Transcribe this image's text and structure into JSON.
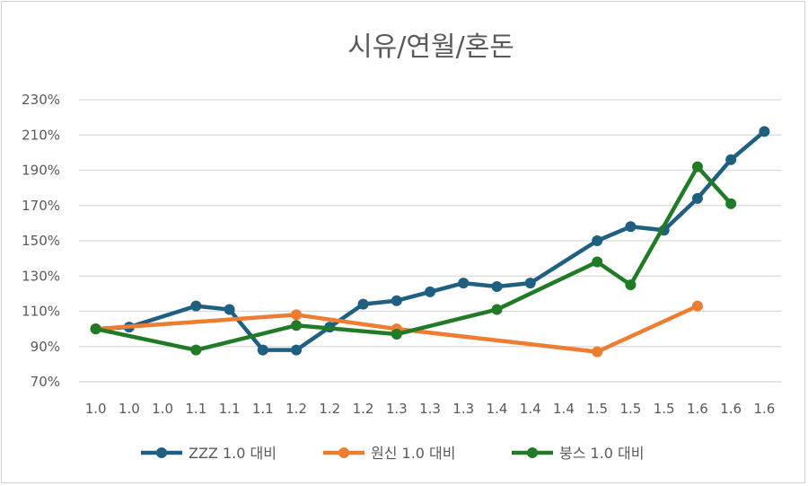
{
  "chart_data": {
    "type": "line",
    "title": "시유/연월/혼돈",
    "xlabel": "",
    "ylabel": "",
    "categories": [
      "1.0",
      "1.0",
      "1.0",
      "1.1",
      "1.1",
      "1.1",
      "1.2",
      "1.2",
      "1.2",
      "1.3",
      "1.3",
      "1.3",
      "1.4",
      "1.4",
      "1.4",
      "1.5",
      "1.5",
      "1.5",
      "1.6",
      "1.6",
      "1.6"
    ],
    "ylim": [
      70,
      230
    ],
    "yticks": [
      70,
      90,
      110,
      130,
      150,
      170,
      190,
      210,
      230
    ],
    "ytick_labels": [
      "70%",
      "90%",
      "110%",
      "130%",
      "150%",
      "170%",
      "190%",
      "210%",
      "230%"
    ],
    "grid": true,
    "legend_position": "bottom",
    "series": [
      {
        "name": "ZZZ 1.0 대비",
        "color": "#1f5f82",
        "values": [
          100,
          101,
          null,
          113,
          111,
          88,
          88,
          101,
          114,
          116,
          121,
          126,
          124,
          126,
          null,
          150,
          158,
          156,
          174,
          196,
          212
        ]
      },
      {
        "name": "원신 1.0 대비",
        "color": "#ed7d31",
        "values": [
          100,
          null,
          null,
          null,
          null,
          null,
          108,
          null,
          null,
          100,
          null,
          null,
          null,
          null,
          null,
          87,
          null,
          null,
          113,
          null,
          null
        ]
      },
      {
        "name": "붕스 1.0 대비",
        "color": "#217a25",
        "values": [
          100,
          null,
          null,
          88,
          null,
          null,
          102,
          null,
          null,
          97,
          null,
          null,
          111,
          null,
          null,
          138,
          125,
          null,
          192,
          171,
          null
        ]
      }
    ]
  }
}
